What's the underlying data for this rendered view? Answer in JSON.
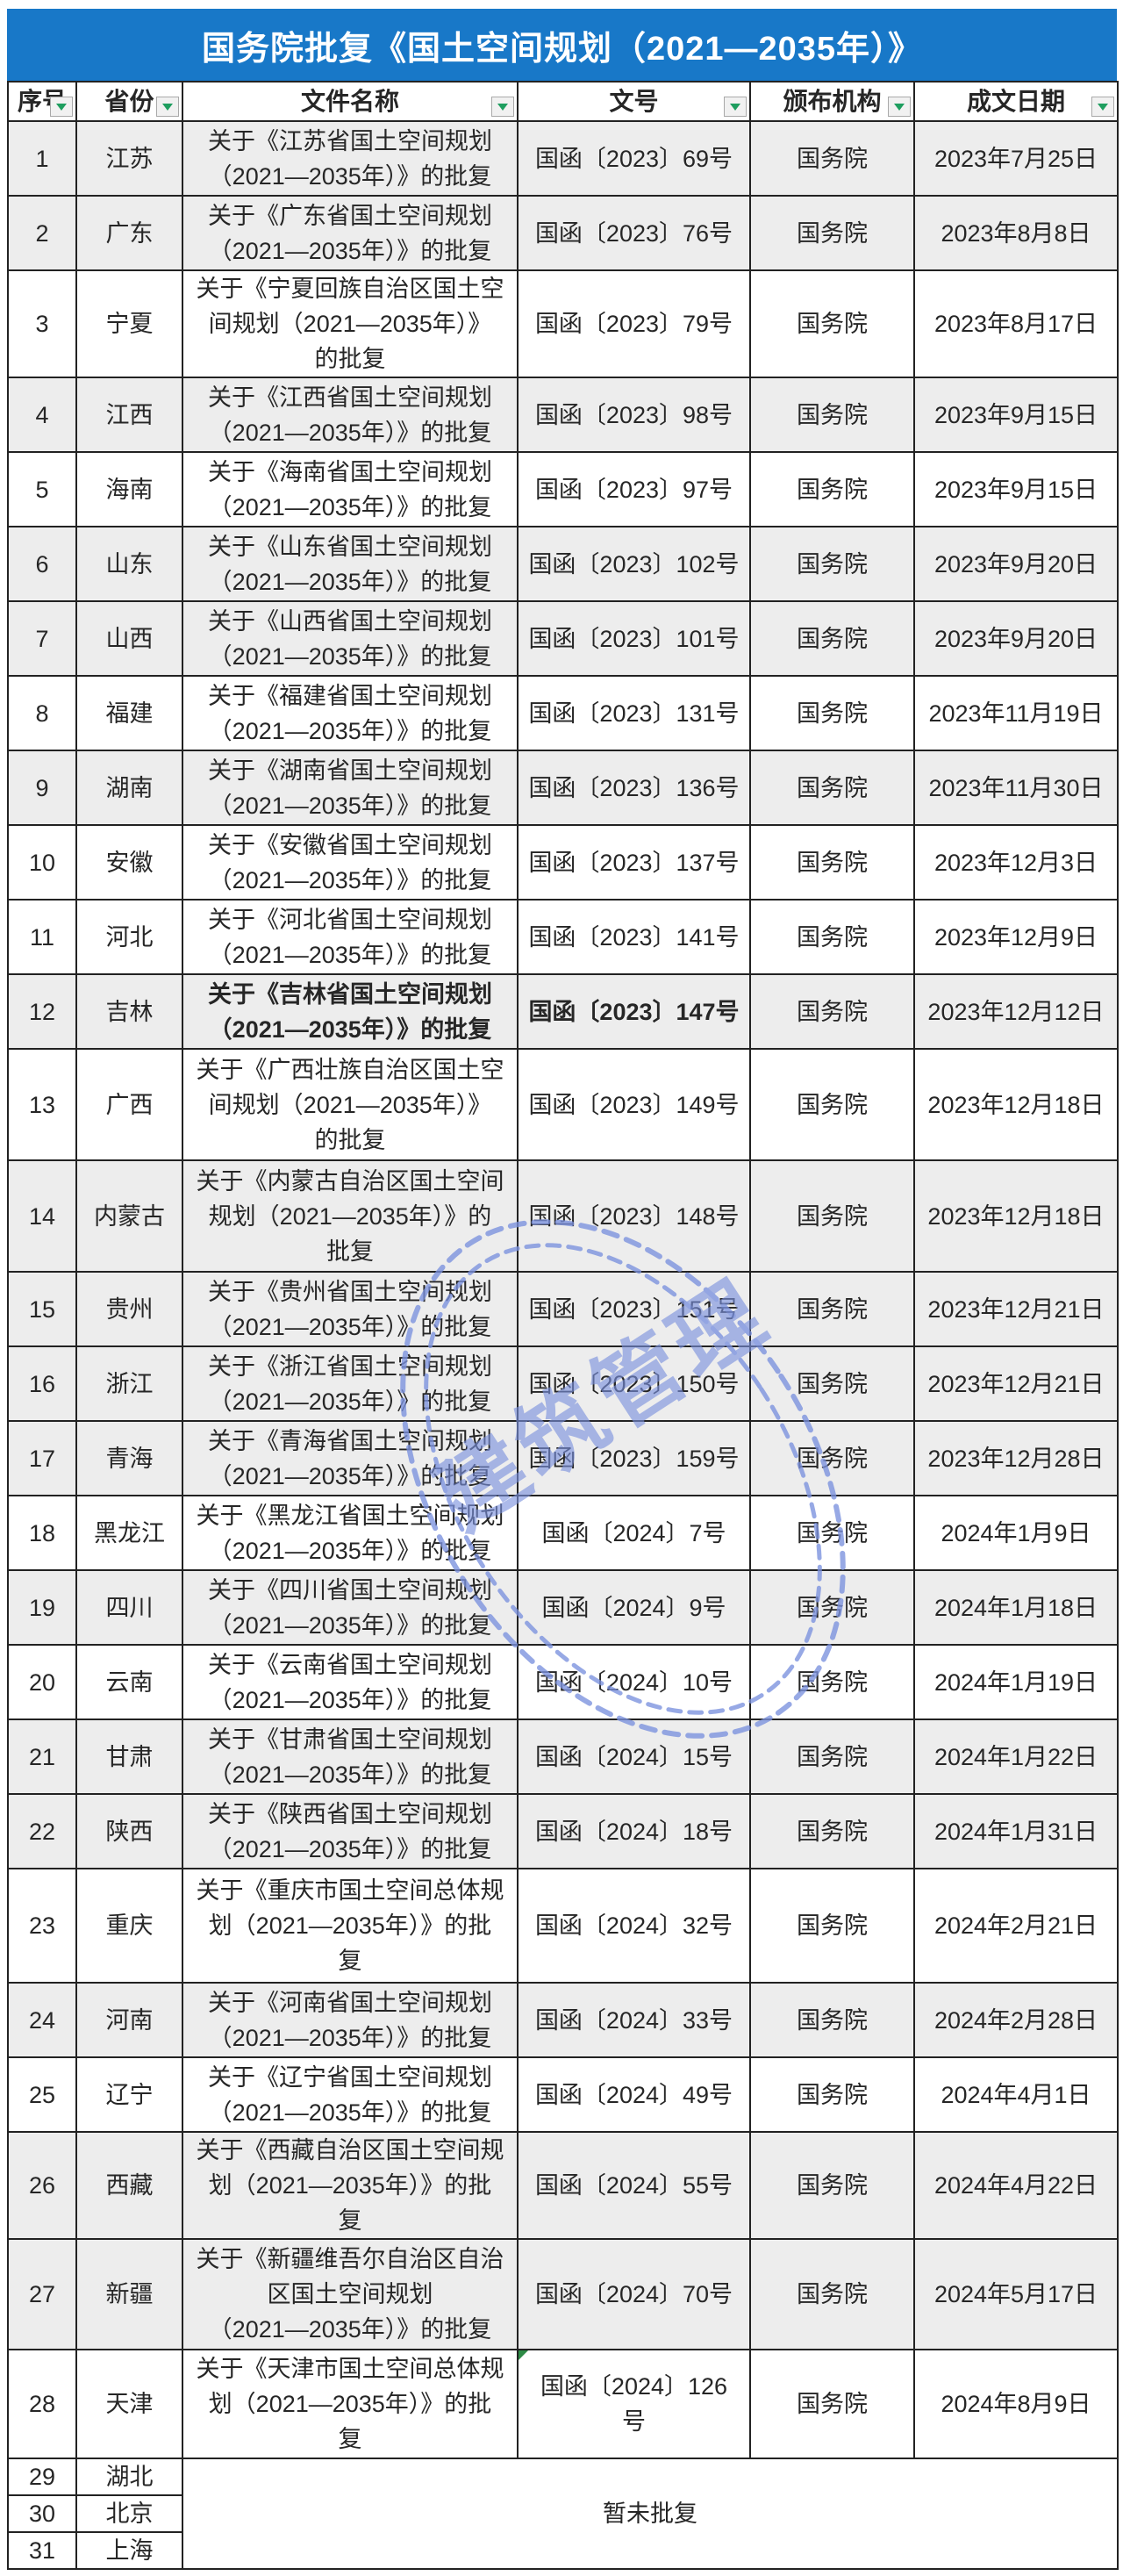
{
  "title": "国务院批复《国土空间规划（2021—2035年）》",
  "columns": [
    "序号",
    "省份",
    "文件名称",
    "文号",
    "颁布机构",
    "成文日期"
  ],
  "rows": [
    {
      "no": "1",
      "province": "江苏",
      "name": "关于《江苏省国土空间规划\n（2021—2035年）》的批复",
      "doc_no": "国函〔2023〕69号",
      "agency": "国务院",
      "date": "2023年7月25日",
      "shaded": true
    },
    {
      "no": "2",
      "province": "广东",
      "name": "关于《广东省国土空间规划\n（2021—2035年）》的批复",
      "doc_no": "国函〔2023〕76号",
      "agency": "国务院",
      "date": "2023年8月8日",
      "shaded": true
    },
    {
      "no": "3",
      "province": "宁夏",
      "name": "关于《宁夏回族自治区国土空\n间规划（2021—2035年）》\n的批复",
      "doc_no": "国函〔2023〕79号",
      "agency": "国务院",
      "date": "2023年8月17日",
      "shaded": false
    },
    {
      "no": "4",
      "province": "江西",
      "name": "关于《江西省国土空间规划\n（2021—2035年）》的批复",
      "doc_no": "国函〔2023〕98号",
      "agency": "国务院",
      "date": "2023年9月15日",
      "shaded": true
    },
    {
      "no": "5",
      "province": "海南",
      "name": "关于《海南省国土空间规划\n（2021—2035年）》的批复",
      "doc_no": "国函〔2023〕97号",
      "agency": "国务院",
      "date": "2023年9月15日",
      "shaded": false
    },
    {
      "no": "6",
      "province": "山东",
      "name": "关于《山东省国土空间规划\n（2021—2035年）》的批复",
      "doc_no": "国函〔2023〕102号",
      "agency": "国务院",
      "date": "2023年9月20日",
      "shaded": true
    },
    {
      "no": "7",
      "province": "山西",
      "name": "关于《山西省国土空间规划\n（2021—2035年）》的批复",
      "doc_no": "国函〔2023〕101号",
      "agency": "国务院",
      "date": "2023年9月20日",
      "shaded": true
    },
    {
      "no": "8",
      "province": "福建",
      "name": "关于《福建省国土空间规划\n（2021—2035年）》的批复",
      "doc_no": "国函〔2023〕131号",
      "agency": "国务院",
      "date": "2023年11月19日",
      "shaded": false
    },
    {
      "no": "9",
      "province": "湖南",
      "name": "关于《湖南省国土空间规划\n（2021—2035年）》的批复",
      "doc_no": "国函〔2023〕136号",
      "agency": "国务院",
      "date": "2023年11月30日",
      "shaded": true
    },
    {
      "no": "10",
      "province": "安徽",
      "name": "关于《安徽省国土空间规划\n（2021—2035年）》的批复",
      "doc_no": "国函〔2023〕137号",
      "agency": "国务院",
      "date": "2023年12月3日",
      "shaded": false
    },
    {
      "no": "11",
      "province": "河北",
      "name": "关于《河北省国土空间规划\n（2021—2035年）》的批复",
      "doc_no": "国函〔2023〕141号",
      "agency": "国务院",
      "date": "2023年12月9日",
      "shaded": false
    },
    {
      "no": "12",
      "province": "吉林",
      "name": "关于《吉林省国土空间规划\n（2021—2035年）》的批复",
      "doc_no": "国函〔2023〕147号",
      "agency": "国务院",
      "date": "2023年12月12日",
      "shaded": true,
      "bold": true
    },
    {
      "no": "13",
      "province": "广西",
      "name": "关于《广西壮族自治区国土空\n间规划（2021—2035年）》\n的批复",
      "doc_no": "国函〔2023〕149号",
      "agency": "国务院",
      "date": "2023年12月18日",
      "shaded": false
    },
    {
      "no": "14",
      "province": "内蒙古",
      "name": "关于《内蒙古自治区国土空间\n规划（2021—2035年）》的\n批复",
      "doc_no": "国函〔2023〕148号",
      "agency": "国务院",
      "date": "2023年12月18日",
      "shaded": true
    },
    {
      "no": "15",
      "province": "贵州",
      "name": "关于《贵州省国土空间规划\n（2021—2035年）》的批复",
      "doc_no": "国函〔2023〕151号",
      "agency": "国务院",
      "date": "2023年12月21日",
      "shaded": true
    },
    {
      "no": "16",
      "province": "浙江",
      "name": "关于《浙江省国土空间规划\n（2021—2035年）》的批复",
      "doc_no": "国函〔2023〕150号",
      "agency": "国务院",
      "date": "2023年12月21日",
      "shaded": true
    },
    {
      "no": "17",
      "province": "青海",
      "name": "关于《青海省国土空间规划\n（2021—2035年）》的批复",
      "doc_no": "国函〔2023〕159号",
      "agency": "国务院",
      "date": "2023年12月28日",
      "shaded": true
    },
    {
      "no": "18",
      "province": "黑龙江",
      "name": "关于《黑龙江省国土空间规划\n（2021—2035年）》的批复",
      "doc_no": "国函〔2024〕7号",
      "agency": "国务院",
      "date": "2024年1月9日",
      "shaded": false
    },
    {
      "no": "19",
      "province": "四川",
      "name": "关于《四川省国土空间规划\n（2021—2035年）》的批复",
      "doc_no": "国函〔2024〕9号",
      "agency": "国务院",
      "date": "2024年1月18日",
      "shaded": true
    },
    {
      "no": "20",
      "province": "云南",
      "name": "关于《云南省国土空间规划\n（2021—2035年）》的批复",
      "doc_no": "国函〔2024〕10号",
      "agency": "国务院",
      "date": "2024年1月19日",
      "shaded": false
    },
    {
      "no": "21",
      "province": "甘肃",
      "name": "关于《甘肃省国土空间规划\n（2021—2035年）》的批复",
      "doc_no": "国函〔2024〕15号",
      "agency": "国务院",
      "date": "2024年1月22日",
      "shaded": true
    },
    {
      "no": "22",
      "province": "陕西",
      "name": "关于《陕西省国土空间规划\n（2021—2035年）》的批复",
      "doc_no": "国函〔2024〕18号",
      "agency": "国务院",
      "date": "2024年1月31日",
      "shaded": true
    },
    {
      "no": "23",
      "province": "重庆",
      "name": "关于《重庆市国土空间总体规\n划（2021—2035年）》的批\n复",
      "doc_no": "国函〔2024〕32号",
      "agency": "国务院",
      "date": "2024年2月21日",
      "shaded": false
    },
    {
      "no": "24",
      "province": "河南",
      "name": "关于《河南省国土空间规划\n（2021—2035年）》的批复",
      "doc_no": "国函〔2024〕33号",
      "agency": "国务院",
      "date": "2024年2月28日",
      "shaded": true
    },
    {
      "no": "25",
      "province": "辽宁",
      "name": "关于《辽宁省国土空间规划\n（2021—2035年）》的批复",
      "doc_no": "国函〔2024〕49号",
      "agency": "国务院",
      "date": "2024年4月1日",
      "shaded": false
    },
    {
      "no": "26",
      "province": "西藏",
      "name": "关于《西藏自治区国土空间规\n划（2021—2035年）》的批\n复",
      "doc_no": "国函〔2024〕55号",
      "agency": "国务院",
      "date": "2024年4月22日",
      "shaded": true
    },
    {
      "no": "27",
      "province": "新疆",
      "name": "关于《新疆维吾尔自治区自治\n区国土空间规划\n（2021—2035年）》的批复",
      "doc_no": "国函〔2024〕70号",
      "agency": "国务院",
      "date": "2024年5月17日",
      "shaded": true
    },
    {
      "no": "28",
      "province": "天津",
      "name": "关于《天津市国土空间总体规\n划（2021—2035年）》的批\n复",
      "doc_no": "国函〔2024〕126\n号",
      "agency": "国务院",
      "date": "2024年8月9日",
      "shaded": false,
      "doc_no_marker": true
    }
  ],
  "pending": {
    "label": "暂未批复",
    "rows": [
      {
        "no": "29",
        "province": "湖北"
      },
      {
        "no": "30",
        "province": "北京"
      },
      {
        "no": "31",
        "province": "上海"
      }
    ]
  },
  "watermark": {
    "text": "建筑管理"
  },
  "icons": {
    "filter_dropdown": "filter-dropdown-icon",
    "corner_marker": "green-corner-marker"
  },
  "colors": {
    "title_bar_blue": "#1878C8",
    "row_band_gray": "#EDEDED",
    "filter_arrow_green": "#1E9E5F",
    "corner_marker_green": "#2E8B46",
    "watermark_blue": "#7B91DE",
    "grid_line": "#222222"
  }
}
